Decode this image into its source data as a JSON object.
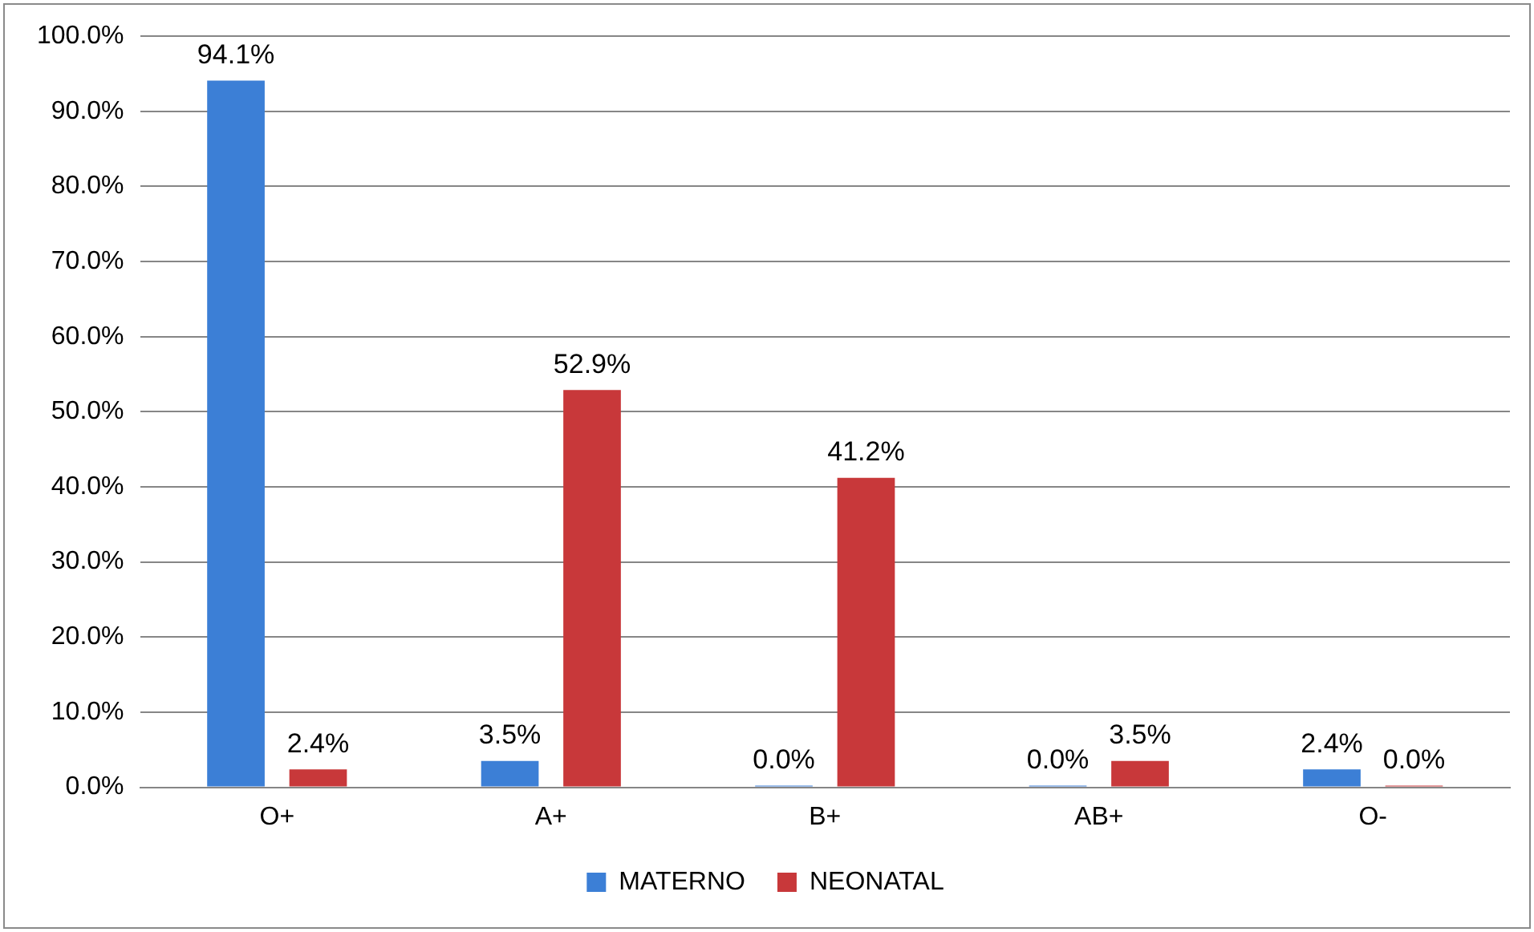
{
  "chart_data": {
    "type": "bar",
    "categories": [
      "O+",
      "A+",
      "B+",
      "AB+",
      "O-"
    ],
    "series": [
      {
        "name": "MATERNO",
        "color": "#3c7fd6",
        "values": [
          94.1,
          3.5,
          0.0,
          0.0,
          2.4
        ],
        "value_labels": [
          "94.1%",
          "3.5%",
          "0.0%",
          "0.0%",
          "2.4%"
        ]
      },
      {
        "name": "NEONATAL",
        "color": "#c8383a",
        "values": [
          2.4,
          52.9,
          41.2,
          3.5,
          0.0
        ],
        "value_labels": [
          "2.4%",
          "52.9%",
          "41.2%",
          "3.5%",
          "0.0%"
        ]
      }
    ],
    "ylim": [
      0,
      100
    ],
    "yticks": [
      {
        "value": 0,
        "label": "0.0%"
      },
      {
        "value": 10,
        "label": "10.0%"
      },
      {
        "value": 20,
        "label": "20.0%"
      },
      {
        "value": 30,
        "label": "30.0%"
      },
      {
        "value": 40,
        "label": "40.0%"
      },
      {
        "value": 50,
        "label": "50.0%"
      },
      {
        "value": 60,
        "label": "60.0%"
      },
      {
        "value": 70,
        "label": "70.0%"
      },
      {
        "value": 80,
        "label": "80.0%"
      },
      {
        "value": 90,
        "label": "90.0%"
      },
      {
        "value": 100,
        "label": "100.0%"
      }
    ],
    "grid": "y",
    "legend": "bottom"
  }
}
